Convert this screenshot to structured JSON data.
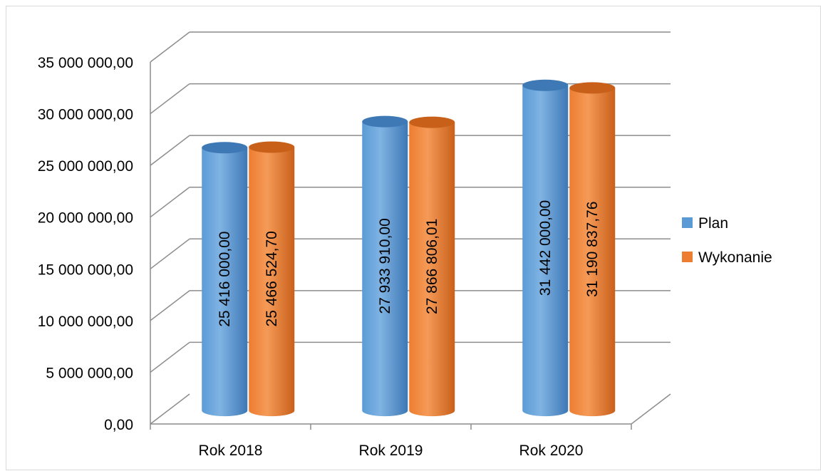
{
  "chart_data": {
    "type": "bar",
    "style": "3d-cylinder",
    "categories": [
      "Rok 2018",
      "Rok 2019",
      "Rok 2020"
    ],
    "series": [
      {
        "name": "Plan",
        "color": "#5b9bd5",
        "values": [
          25416000.0,
          27933910.0,
          31442000.0
        ],
        "labels": [
          "25 416 000,00",
          "27 933 910,00",
          "31 442 000,00"
        ]
      },
      {
        "name": "Wykonanie",
        "color": "#ed7d31",
        "values": [
          25466524.7,
          27866806.01,
          31190837.76
        ],
        "labels": [
          "25 466 524,70",
          "27 866 806,01",
          "31 190 837,76"
        ]
      }
    ],
    "ylim": [
      0,
      35000000
    ],
    "y_ticks": [
      {
        "value": 0,
        "label": "0,00"
      },
      {
        "value": 5000000,
        "label": "5 000 000,00"
      },
      {
        "value": 10000000,
        "label": "10 000 000,00"
      },
      {
        "value": 15000000,
        "label": "15 000 000,00"
      },
      {
        "value": 20000000,
        "label": "20 000 000,00"
      },
      {
        "value": 25000000,
        "label": "25 000 000,00"
      },
      {
        "value": 30000000,
        "label": "30 000 000,00"
      },
      {
        "value": 35000000,
        "label": "35 000 000,00"
      }
    ],
    "grid": true,
    "legend_position": "right"
  }
}
